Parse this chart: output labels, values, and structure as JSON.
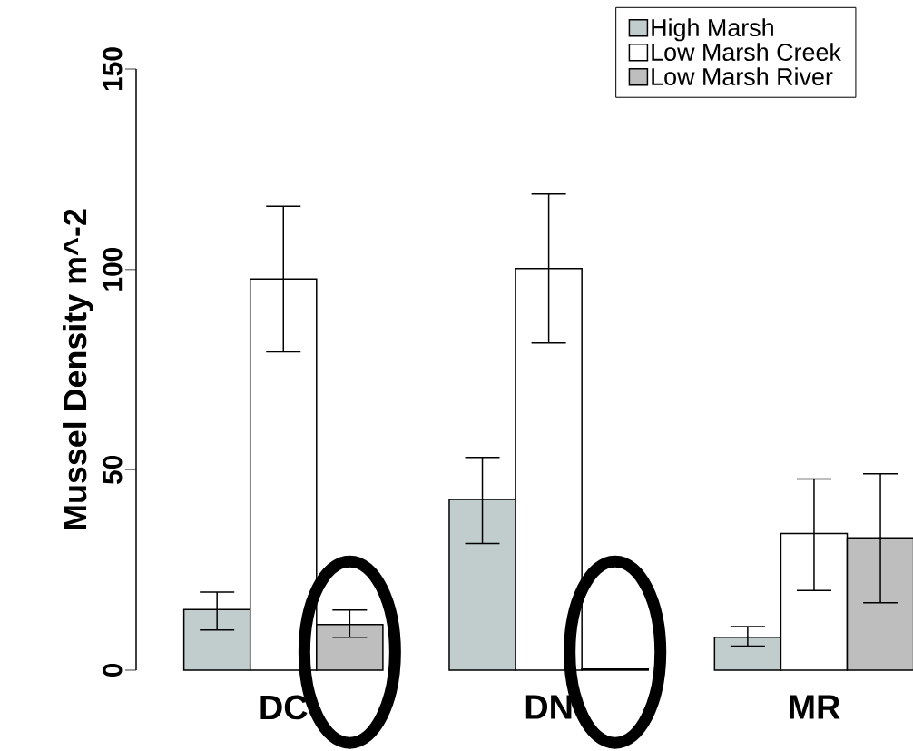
{
  "chart_data": {
    "type": "bar",
    "ylabel": "Mussel Density m^-2",
    "categories": [
      "DC",
      "DN",
      "MR"
    ],
    "ylim": [
      0,
      150
    ],
    "yticks": [
      0,
      50,
      100,
      150
    ],
    "legend": "top right",
    "series": [
      {
        "name": "High Marsh",
        "color": "#c1cdcd",
        "values": [
          15.1,
          42.6,
          8.2
        ],
        "errors": [
          [
            10.0,
            19.5
          ],
          [
            31.6,
            53.1
          ],
          [
            6.0,
            10.9
          ]
        ]
      },
      {
        "name": "Low Marsh Creek",
        "color": "#ffffff",
        "values": [
          97.6,
          100.2,
          34.1
        ],
        "errors": [
          [
            79.4,
            115.7
          ],
          [
            81.6,
            118.8
          ],
          [
            19.9,
            47.7
          ]
        ]
      },
      {
        "name": "Low Marsh River",
        "color": "#bebebe",
        "values": [
          11.4,
          0.3,
          33.0
        ],
        "errors": [
          [
            8.2,
            15.0
          ],
          null,
          [
            16.8,
            49.0
          ]
        ]
      }
    ]
  }
}
